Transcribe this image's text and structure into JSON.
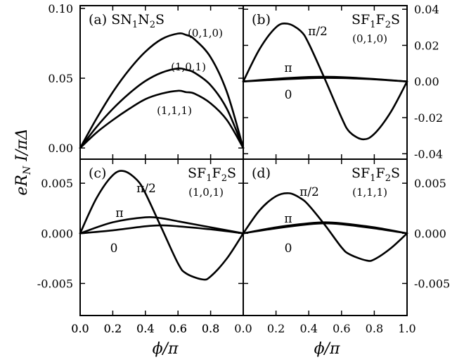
{
  "ylabel": "eR_N I/πΔ",
  "xlabel": "ϕ/π",
  "chart_data": [
    {
      "type": "line",
      "panel": "a",
      "label_prefix": "(a) ",
      "label_main": "SN",
      "label_parts": [
        "S",
        "N",
        "1",
        "N",
        "2",
        "S"
      ],
      "subtitle": "",
      "xlim": [
        0,
        1
      ],
      "ylim": [
        -0.008,
        0.102
      ],
      "xticks": [
        0.0,
        0.2,
        0.4,
        0.6,
        0.8
      ],
      "xtick_labels": [
        "0.0",
        "0.2",
        "0.4",
        "0.6",
        "0.8"
      ],
      "yticks": [
        0.0,
        0.05,
        0.1
      ],
      "ytick_labels": [
        "0.00",
        "0.05",
        "0.10"
      ],
      "ytick_side": "left",
      "series": [
        {
          "name": "(0,1,0)",
          "x": [
            0,
            0.1,
            0.2,
            0.3,
            0.4,
            0.5,
            0.6,
            0.65,
            0.7,
            0.8,
            0.9,
            1.0
          ],
          "y": [
            0,
            0.021,
            0.04,
            0.056,
            0.069,
            0.078,
            0.082,
            0.081,
            0.078,
            0.065,
            0.04,
            0
          ]
        },
        {
          "name": "(1,0,1)",
          "x": [
            0,
            0.1,
            0.2,
            0.3,
            0.4,
            0.5,
            0.6,
            0.65,
            0.7,
            0.8,
            0.9,
            1.0
          ],
          "y": [
            0,
            0.015,
            0.028,
            0.039,
            0.048,
            0.054,
            0.057,
            0.056,
            0.054,
            0.045,
            0.028,
            0
          ]
        },
        {
          "name": "(1,1,1)",
          "x": [
            0,
            0.1,
            0.2,
            0.3,
            0.4,
            0.5,
            0.6,
            0.65,
            0.7,
            0.8,
            0.9,
            1.0
          ],
          "y": [
            0,
            0.011,
            0.02,
            0.028,
            0.035,
            0.039,
            0.041,
            0.04,
            0.039,
            0.032,
            0.02,
            0
          ]
        }
      ]
    },
    {
      "type": "line",
      "panel": "b",
      "label_prefix": "(b)",
      "label_parts": [
        "S",
        "F",
        "1",
        "F",
        "2",
        "S"
      ],
      "subtitle": "(0,1,0)",
      "xlim": [
        0,
        1
      ],
      "ylim": [
        -0.043,
        0.042
      ],
      "xticks": [],
      "xtick_labels": [],
      "yticks": [
        -0.04,
        -0.02,
        0.0,
        0.02,
        0.04
      ],
      "ytick_labels": [
        "-0.04",
        "-0.02",
        "0.00",
        "0.02",
        "0.04"
      ],
      "ytick_side": "right",
      "series": [
        {
          "name": "π/2",
          "x": [
            0,
            0.1,
            0.2,
            0.27,
            0.35,
            0.4,
            0.5,
            0.6,
            0.65,
            0.73,
            0.8,
            0.9,
            1.0
          ],
          "y": [
            0,
            0.018,
            0.03,
            0.032,
            0.028,
            0.021,
            0.001,
            -0.02,
            -0.028,
            -0.032,
            -0.029,
            -0.017,
            0
          ]
        },
        {
          "name": "π",
          "x": [
            0,
            0.2,
            0.4,
            0.5,
            0.6,
            0.8,
            1.0
          ],
          "y": [
            0,
            0.0015,
            0.0025,
            0.0026,
            0.0024,
            0.0014,
            0
          ]
        },
        {
          "name": "0",
          "x": [
            0,
            0.2,
            0.4,
            0.5,
            0.6,
            0.8,
            1.0
          ],
          "y": [
            0,
            0.001,
            0.0018,
            0.002,
            0.0019,
            0.0012,
            0
          ]
        }
      ]
    },
    {
      "type": "line",
      "panel": "c",
      "label_prefix": "(c)",
      "label_parts": [
        "S",
        "F",
        "1",
        "F",
        "2",
        "S"
      ],
      "subtitle": "(1,0,1)",
      "xlim": [
        0,
        1
      ],
      "ylim": [
        -0.0082,
        0.0074
      ],
      "xticks": [
        0.0,
        0.2,
        0.4,
        0.6,
        0.8
      ],
      "xtick_labels": [
        "0.0",
        "0.2",
        "0.4",
        "0.6",
        "0.8"
      ],
      "yticks": [
        -0.005,
        0.0,
        0.005
      ],
      "ytick_labels": [
        "-0.005",
        "0.000",
        "0.005"
      ],
      "ytick_side": "left",
      "series": [
        {
          "name": "π/2",
          "x": [
            0,
            0.1,
            0.2,
            0.27,
            0.35,
            0.4,
            0.5,
            0.6,
            0.65,
            0.75,
            0.8,
            0.9,
            1.0
          ],
          "y": [
            0,
            0.0035,
            0.0058,
            0.0062,
            0.0053,
            0.004,
            0.0005,
            -0.003,
            -0.004,
            -0.0046,
            -0.0043,
            -0.0025,
            0
          ]
        },
        {
          "name": "π",
          "x": [
            0,
            0.2,
            0.4,
            0.5,
            0.6,
            0.8,
            1.0
          ],
          "y": [
            0,
            0.0011,
            0.0016,
            0.0015,
            0.0012,
            0.0006,
            0
          ]
        },
        {
          "name": "0",
          "x": [
            0,
            0.2,
            0.4,
            0.5,
            0.6,
            0.8,
            1.0
          ],
          "y": [
            0,
            0.0003,
            0.0007,
            0.0008,
            0.0007,
            0.0004,
            0
          ]
        }
      ]
    },
    {
      "type": "line",
      "panel": "d",
      "label_prefix": "(d)",
      "label_parts": [
        "S",
        "F",
        "1",
        "F",
        "2",
        "S"
      ],
      "subtitle": "(1,1,1)",
      "xlim": [
        0,
        1
      ],
      "ylim": [
        -0.0082,
        0.0074
      ],
      "xticks": [
        0.0,
        0.2,
        0.4,
        0.6,
        0.8,
        1.0
      ],
      "xtick_labels": [
        "0.0",
        "0.2",
        "0.4",
        "0.6",
        "0.8",
        "1.0"
      ],
      "yticks": [
        -0.005,
        0.0,
        0.005
      ],
      "ytick_labels": [
        "-0.005",
        "0.000",
        "0.005"
      ],
      "ytick_side": "right",
      "series": [
        {
          "name": "π/2",
          "x": [
            0,
            0.1,
            0.2,
            0.28,
            0.35,
            0.4,
            0.5,
            0.6,
            0.65,
            0.75,
            0.8,
            0.9,
            1.0
          ],
          "y": [
            0,
            0.0023,
            0.0037,
            0.004,
            0.0035,
            0.0028,
            0.0008,
            -0.0014,
            -0.0021,
            -0.0027,
            -0.0026,
            -0.0015,
            0
          ]
        },
        {
          "name": "π",
          "x": [
            0,
            0.2,
            0.4,
            0.5,
            0.6,
            0.8,
            1.0
          ],
          "y": [
            0,
            0.0006,
            0.001,
            0.0011,
            0.001,
            0.0006,
            0
          ]
        },
        {
          "name": "0",
          "x": [
            0,
            0.2,
            0.4,
            0.5,
            0.6,
            0.8,
            1.0
          ],
          "y": [
            0,
            0.0005,
            0.0009,
            0.001,
            0.0009,
            0.0005,
            0
          ]
        }
      ]
    }
  ]
}
